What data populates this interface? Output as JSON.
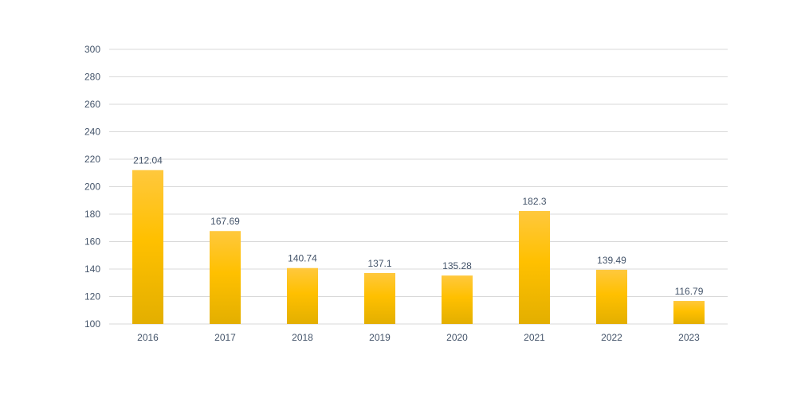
{
  "chart_data": {
    "type": "bar",
    "title": "",
    "xlabel": "",
    "ylabel": "",
    "categories": [
      "2016",
      "2017",
      "2018",
      "2019",
      "2020",
      "2021",
      "2022",
      "2023"
    ],
    "values": [
      212.04,
      167.69,
      140.74,
      137.1,
      135.28,
      182.3,
      139.49,
      116.79
    ],
    "value_labels": [
      "212.04",
      "167.69",
      "140.74",
      "137.1",
      "135.28",
      "182.3",
      "139.49",
      "116.79"
    ],
    "ylim": [
      100,
      300
    ],
    "yticks": [
      100,
      120,
      140,
      160,
      180,
      200,
      220,
      240,
      260,
      280,
      300
    ],
    "grid": true,
    "legend": "none",
    "colors": {
      "bar_top": "#FFC83D",
      "bar_mid": "#FFC000",
      "bar_bottom": "#E3AF00",
      "grid": "#D9D9D9",
      "text": "#44546A"
    }
  }
}
